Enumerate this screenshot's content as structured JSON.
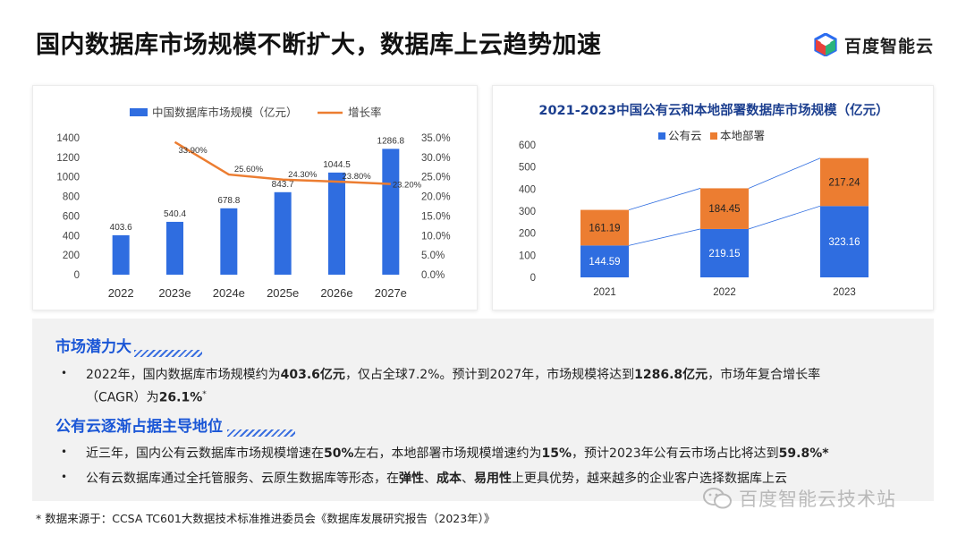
{
  "page": {
    "title": "国内数据库市场规模不断扩大，数据库上云趋势加速",
    "logo_text": "百度智能云"
  },
  "chart_data": [
    {
      "type": "bar",
      "categories": [
        "2022",
        "2023e",
        "2024e",
        "2025e",
        "2026e",
        "2027e"
      ],
      "series": [
        {
          "name": "中国数据库市场规模（亿元）",
          "type": "bar",
          "values": [
            403.6,
            540.4,
            678.8,
            843.7,
            1044.5,
            1286.8
          ],
          "labels": [
            "403.6",
            "540.4",
            "678.8",
            "843.7",
            "1044.5",
            "1286.8"
          ],
          "color": "#2f6de0",
          "axis": "left"
        },
        {
          "name": "增长率",
          "type": "line",
          "values": [
            null,
            33.9,
            25.6,
            24.3,
            23.8,
            23.2
          ],
          "labels": [
            "",
            "33.90%",
            "25.60%",
            "24.30%",
            "23.80%",
            "23.20%"
          ],
          "color": "#ec7d31",
          "axis": "right"
        }
      ],
      "y_left": {
        "range": [
          0,
          1400
        ],
        "ticks": [
          "0",
          "200",
          "400",
          "600",
          "800",
          "1000",
          "1200",
          "1400"
        ]
      },
      "y_right": {
        "range": [
          0,
          35
        ],
        "ticks": [
          "0.0%",
          "5.0%",
          "10.0%",
          "15.0%",
          "20.0%",
          "25.0%",
          "30.0%",
          "35.0%"
        ]
      },
      "grid": false,
      "legend": "top"
    },
    {
      "type": "bar",
      "stacked": true,
      "title": "2021-2023中国公有云和本地部署数据库市场规模（亿元）",
      "categories": [
        "2021",
        "2022",
        "2023"
      ],
      "series": [
        {
          "name": "公有云",
          "values": [
            144.59,
            219.15,
            323.16
          ],
          "labels": [
            "144.59",
            "219.15",
            "323.16"
          ],
          "color": "#2f6de0"
        },
        {
          "name": "本地部署",
          "values": [
            161.19,
            184.45,
            217.24
          ],
          "labels": [
            "161.19",
            "184.45",
            "217.24"
          ],
          "color": "#ec7d31"
        }
      ],
      "y": {
        "range": [
          0,
          600
        ],
        "ticks": [
          "0",
          "100",
          "200",
          "300",
          "400",
          "500",
          "600"
        ]
      },
      "grid": false,
      "legend": "top"
    }
  ],
  "sections": {
    "potential": {
      "heading": "市场潜力大",
      "line1": [
        {
          "t": "2022年，国内数据库市场规模约为",
          "b": false
        },
        {
          "t": "403.6亿元",
          "b": true
        },
        {
          "t": "，仅占全球7.2%。预计到2027年，市场规模将达到",
          "b": false
        },
        {
          "t": "1286.8亿元",
          "b": true
        },
        {
          "t": "，市场年复合增长率",
          "b": false
        }
      ],
      "line2": [
        {
          "t": "（CAGR）为",
          "b": false
        },
        {
          "t": "26.1%",
          "b": true
        },
        {
          "t": "*",
          "b": false,
          "sup": true
        }
      ]
    },
    "cloud": {
      "heading": "公有云逐渐占据主导地位",
      "line1": [
        {
          "t": "近三年，国内公有云数据库市场规模增速在",
          "b": false
        },
        {
          "t": "50%",
          "b": true
        },
        {
          "t": "左右，本地部署市场规模增速约为",
          "b": false
        },
        {
          "t": "15%",
          "b": true
        },
        {
          "t": "，预计2023年公有云市场占比将达到",
          "b": false
        },
        {
          "t": "59.8%*",
          "b": true
        }
      ],
      "line2": [
        {
          "t": "公有云数据库通过全托管服务、云原生数据库等形态，在",
          "b": false
        },
        {
          "t": "弹性",
          "b": true
        },
        {
          "t": "、",
          "b": false
        },
        {
          "t": "成本",
          "b": true
        },
        {
          "t": "、",
          "b": false
        },
        {
          "t": "易用性",
          "b": true
        },
        {
          "t": "上更具优势，越来越多的企业客户选择数据库上云",
          "b": false
        }
      ]
    }
  },
  "footnote": "* 数据来源于：CCSA TC601大数据技术标准推进委员会《数据库发展研究报告（2023年）》",
  "watermark": "百度智能云技术站",
  "bullet_symbol": "•"
}
